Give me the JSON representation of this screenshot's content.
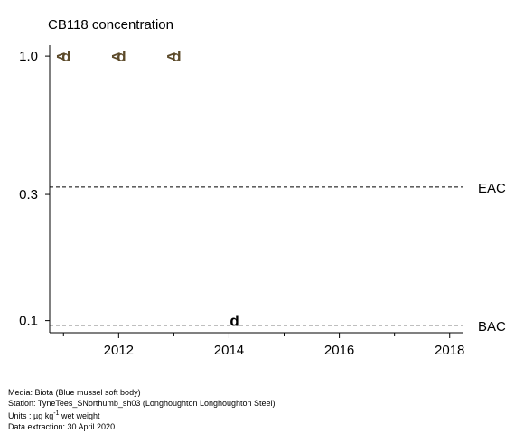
{
  "chart_data": {
    "type": "scatter",
    "title": "CB118 concentration",
    "y_scale": "log",
    "xlim": [
      2010.75,
      2018.25
    ],
    "ylim": [
      0.09,
      1.1
    ],
    "x_ticks": [
      2012,
      2014,
      2016,
      2018
    ],
    "x_tick_labels": [
      "2012",
      "2014",
      "2016",
      "2018"
    ],
    "x_minor_ticks": [
      2011,
      2013,
      2015,
      2017
    ],
    "y_ticks": [
      0.1,
      0.3,
      1.0
    ],
    "y_tick_labels": [
      "0.1",
      "0.3",
      "1.0"
    ],
    "grid": false,
    "reference_lines": [
      {
        "label": "EAC",
        "value": 0.32,
        "style": "dashed"
      },
      {
        "label": "BAC",
        "value": 0.096,
        "style": "dashed"
      }
    ],
    "points": [
      {
        "x": 2010.95,
        "y": 1.0,
        "marker": "<"
      },
      {
        "x": 2011.05,
        "y": 1.0,
        "marker": "d"
      },
      {
        "x": 2011.95,
        "y": 1.0,
        "marker": "<"
      },
      {
        "x": 2012.05,
        "y": 1.0,
        "marker": "d"
      },
      {
        "x": 2012.95,
        "y": 1.0,
        "marker": "<"
      },
      {
        "x": 2013.05,
        "y": 1.0,
        "marker": "d"
      },
      {
        "x": 2014.1,
        "y": 0.1,
        "marker": "d"
      }
    ],
    "colors": {
      "point": "#5c4a2a",
      "point_dark": "#000000",
      "axis": "#000000"
    }
  },
  "footer": {
    "media": "Media: Biota (Blue mussel soft body)",
    "station": "Station: TyneTees_SNorthumb_sh03 (Longhoughton Longhoughton Steel)",
    "units_prefix": "Units : µg kg",
    "units_exp": "-1",
    "units_suffix": " wet weight",
    "extraction": "Data extraction: 30 April 2020"
  }
}
